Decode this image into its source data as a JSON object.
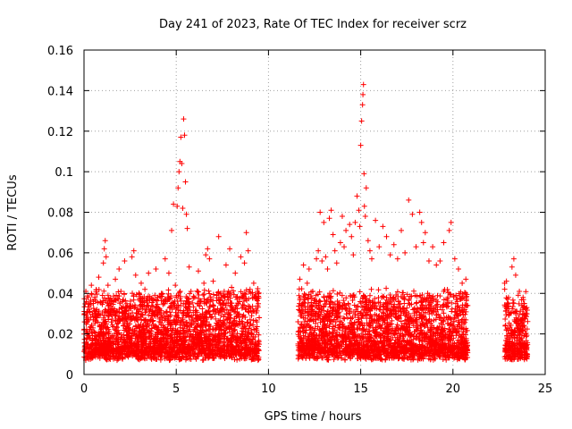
{
  "chart_data": {
    "type": "scatter",
    "title": "Day 241 of 2023, Rate Of TEC Index for receiver scrz",
    "xlabel": "GPS time / hours",
    "ylabel": "ROTI / TECUs",
    "xlim": [
      0,
      25
    ],
    "ylim": [
      0,
      0.16
    ],
    "xticks": [
      0,
      5,
      10,
      15,
      20,
      25
    ],
    "yticks": [
      0,
      0.02,
      0.04,
      0.06,
      0.08,
      0.1,
      0.12,
      0.14,
      0.16
    ],
    "xtick_labels": [
      "0",
      "5",
      "10",
      "15",
      "20",
      "25"
    ],
    "ytick_labels": [
      "0",
      "0.02",
      "0.04",
      "0.06",
      "0.08",
      "0.1",
      "0.12",
      "0.14",
      "0.16"
    ],
    "grid": true,
    "marker": "plus",
    "color": "#ff0000",
    "data_gaps_hours": [
      [
        9.5,
        11.6
      ],
      [
        20.8,
        22.8
      ]
    ],
    "series": [
      {
        "points": [
          [
            0.0,
            0.022
          ],
          [
            0.1,
            0.041
          ],
          [
            0.2,
            0.018
          ],
          [
            0.3,
            0.035
          ],
          [
            0.4,
            0.044
          ],
          [
            0.5,
            0.027
          ],
          [
            0.6,
            0.015
          ],
          [
            0.7,
            0.032
          ],
          [
            0.8,
            0.048
          ],
          [
            0.9,
            0.021
          ],
          [
            1.0,
            0.039
          ],
          [
            1.05,
            0.055
          ],
          [
            1.1,
            0.062
          ],
          [
            1.15,
            0.066
          ],
          [
            1.2,
            0.058
          ],
          [
            1.3,
            0.044
          ],
          [
            1.4,
            0.031
          ],
          [
            1.5,
            0.012
          ],
          [
            1.6,
            0.036
          ],
          [
            1.7,
            0.047
          ],
          [
            1.8,
            0.025
          ],
          [
            1.9,
            0.052
          ],
          [
            2.0,
            0.041
          ],
          [
            2.2,
            0.056
          ],
          [
            2.3,
            0.033
          ],
          [
            2.5,
            0.028
          ],
          [
            2.6,
            0.058
          ],
          [
            2.7,
            0.061
          ],
          [
            2.8,
            0.049
          ],
          [
            3.0,
            0.023
          ],
          [
            3.1,
            0.045
          ],
          [
            3.3,
            0.042
          ],
          [
            3.5,
            0.05
          ],
          [
            3.7,
            0.029
          ],
          [
            3.9,
            0.052
          ],
          [
            4.0,
            0.038
          ],
          [
            4.2,
            0.04
          ],
          [
            4.4,
            0.057
          ],
          [
            4.5,
            0.031
          ],
          [
            4.6,
            0.05
          ],
          [
            4.75,
            0.071
          ],
          [
            4.85,
            0.084
          ],
          [
            4.95,
            0.044
          ],
          [
            5.05,
            0.083
          ],
          [
            5.1,
            0.092
          ],
          [
            5.15,
            0.1
          ],
          [
            5.2,
            0.105
          ],
          [
            5.25,
            0.117
          ],
          [
            5.3,
            0.104
          ],
          [
            5.35,
            0.082
          ],
          [
            5.4,
            0.126
          ],
          [
            5.45,
            0.118
          ],
          [
            5.5,
            0.095
          ],
          [
            5.55,
            0.079
          ],
          [
            5.6,
            0.072
          ],
          [
            5.7,
            0.053
          ],
          [
            5.8,
            0.041
          ],
          [
            6.0,
            0.038
          ],
          [
            6.2,
            0.051
          ],
          [
            6.3,
            0.024
          ],
          [
            6.5,
            0.045
          ],
          [
            6.6,
            0.059
          ],
          [
            6.7,
            0.062
          ],
          [
            6.8,
            0.057
          ],
          [
            7.0,
            0.046
          ],
          [
            7.2,
            0.039
          ],
          [
            7.3,
            0.068
          ],
          [
            7.5,
            0.032
          ],
          [
            7.6,
            0.041
          ],
          [
            7.7,
            0.054
          ],
          [
            7.9,
            0.062
          ],
          [
            8.0,
            0.043
          ],
          [
            8.2,
            0.05
          ],
          [
            8.3,
            0.037
          ],
          [
            8.5,
            0.058
          ],
          [
            8.7,
            0.055
          ],
          [
            8.8,
            0.07
          ],
          [
            8.9,
            0.061
          ],
          [
            9.0,
            0.042
          ],
          [
            9.2,
            0.045
          ],
          [
            9.4,
            0.041
          ],
          [
            9.5,
            0.028
          ],
          [
            11.6,
            0.026
          ],
          [
            11.7,
            0.047
          ],
          [
            11.8,
            0.033
          ],
          [
            11.9,
            0.054
          ],
          [
            12.0,
            0.038
          ],
          [
            12.1,
            0.045
          ],
          [
            12.2,
            0.052
          ],
          [
            12.4,
            0.041
          ],
          [
            12.6,
            0.057
          ],
          [
            12.7,
            0.061
          ],
          [
            12.8,
            0.08
          ],
          [
            12.9,
            0.056
          ],
          [
            13.0,
            0.075
          ],
          [
            13.1,
            0.058
          ],
          [
            13.2,
            0.052
          ],
          [
            13.3,
            0.077
          ],
          [
            13.4,
            0.081
          ],
          [
            13.5,
            0.069
          ],
          [
            13.6,
            0.061
          ],
          [
            13.7,
            0.055
          ],
          [
            13.9,
            0.065
          ],
          [
            14.0,
            0.078
          ],
          [
            14.1,
            0.063
          ],
          [
            14.2,
            0.071
          ],
          [
            14.4,
            0.074
          ],
          [
            14.5,
            0.068
          ],
          [
            14.6,
            0.059
          ],
          [
            14.7,
            0.075
          ],
          [
            14.8,
            0.088
          ],
          [
            14.9,
            0.081
          ],
          [
            14.95,
            0.073
          ],
          [
            15.0,
            0.113
          ],
          [
            15.05,
            0.125
          ],
          [
            15.1,
            0.133
          ],
          [
            15.12,
            0.138
          ],
          [
            15.15,
            0.143
          ],
          [
            15.18,
            0.099
          ],
          [
            15.2,
            0.083
          ],
          [
            15.25,
            0.078
          ],
          [
            15.3,
            0.092
          ],
          [
            15.4,
            0.066
          ],
          [
            15.5,
            0.061
          ],
          [
            15.6,
            0.057
          ],
          [
            15.8,
            0.076
          ],
          [
            16.0,
            0.063
          ],
          [
            16.2,
            0.073
          ],
          [
            16.4,
            0.068
          ],
          [
            16.6,
            0.059
          ],
          [
            16.8,
            0.064
          ],
          [
            17.0,
            0.057
          ],
          [
            17.2,
            0.071
          ],
          [
            17.4,
            0.06
          ],
          [
            17.6,
            0.086
          ],
          [
            17.8,
            0.079
          ],
          [
            18.0,
            0.063
          ],
          [
            18.2,
            0.08
          ],
          [
            18.3,
            0.075
          ],
          [
            18.4,
            0.065
          ],
          [
            18.5,
            0.07
          ],
          [
            18.7,
            0.056
          ],
          [
            18.9,
            0.063
          ],
          [
            19.1,
            0.054
          ],
          [
            19.3,
            0.056
          ],
          [
            19.5,
            0.065
          ],
          [
            19.8,
            0.071
          ],
          [
            19.9,
            0.075
          ],
          [
            20.1,
            0.057
          ],
          [
            20.3,
            0.052
          ],
          [
            20.5,
            0.045
          ],
          [
            20.7,
            0.047
          ],
          [
            20.8,
            0.034
          ],
          [
            22.8,
            0.045
          ],
          [
            22.9,
            0.046
          ],
          [
            23.0,
            0.035
          ],
          [
            23.2,
            0.053
          ],
          [
            23.3,
            0.057
          ],
          [
            23.4,
            0.049
          ],
          [
            23.6,
            0.041
          ],
          [
            23.8,
            0.038
          ],
          [
            24.0,
            0.033
          ]
        ]
      }
    ]
  }
}
